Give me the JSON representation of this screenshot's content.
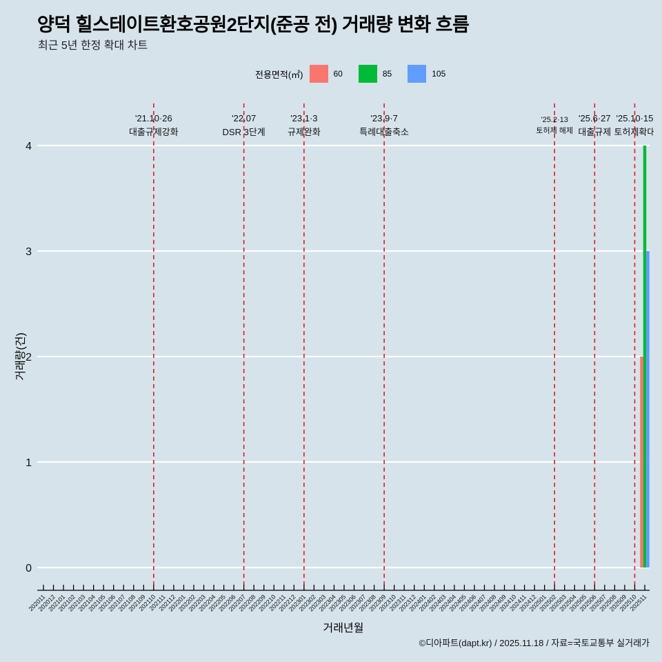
{
  "header": {
    "title": "양덕 힐스테이트환호공원2단지(준공 전) 거래량 변화 흐름",
    "subtitle": "최근 5년 한정 확대 차트"
  },
  "legend": {
    "title": "전용면적(㎡)",
    "items": [
      {
        "label": "60",
        "color": "#F8766D"
      },
      {
        "label": "85",
        "color": "#00BA38"
      },
      {
        "label": "105",
        "color": "#619CFF"
      }
    ]
  },
  "caption": "©디아파트(dapt.kr) / 2025.11.18 / 자료=국토교통부 실거래가",
  "chart_data": {
    "type": "bar",
    "title": "양덕 힐스테이트환호공원2단지(준공 전) 거래량 변화 흐름",
    "subtitle": "최근 5년 한정 확대 차트",
    "xlabel": "거래년월",
    "ylabel": "거래량(건)",
    "ylim": [
      0,
      4
    ],
    "yticks": [
      0,
      1,
      2,
      3,
      4
    ],
    "grid": true,
    "legend_position": "top",
    "legend_title": "전용면적(㎡)",
    "categories": [
      "202011",
      "202012",
      "202101",
      "202102",
      "202103",
      "202104",
      "202105",
      "202106",
      "202107",
      "202108",
      "202109",
      "202110",
      "202111",
      "202112",
      "202201",
      "202202",
      "202203",
      "202204",
      "202205",
      "202206",
      "202207",
      "202208",
      "202209",
      "202210",
      "202211",
      "202212",
      "202301",
      "202302",
      "202303",
      "202304",
      "202305",
      "202306",
      "202307",
      "202308",
      "202309",
      "202310",
      "202311",
      "202312",
      "202401",
      "202402",
      "202403",
      "202404",
      "202405",
      "202406",
      "202407",
      "202408",
      "202409",
      "202410",
      "202411",
      "202412",
      "202501",
      "202502",
      "202503",
      "202504",
      "202505",
      "202506",
      "202507",
      "202508",
      "202509",
      "202510",
      "202511"
    ],
    "series": [
      {
        "name": "60",
        "color": "#F8766D",
        "values": [
          0,
          0,
          0,
          0,
          0,
          0,
          0,
          0,
          0,
          0,
          0,
          0,
          0,
          0,
          0,
          0,
          0,
          0,
          0,
          0,
          0,
          0,
          0,
          0,
          0,
          0,
          0,
          0,
          0,
          0,
          0,
          0,
          0,
          0,
          0,
          0,
          0,
          0,
          0,
          0,
          0,
          0,
          0,
          0,
          0,
          0,
          0,
          0,
          0,
          0,
          0,
          0,
          0,
          0,
          0,
          0,
          0,
          0,
          0,
          0,
          2
        ]
      },
      {
        "name": "85",
        "color": "#00BA38",
        "values": [
          0,
          0,
          0,
          0,
          0,
          0,
          0,
          0,
          0,
          0,
          0,
          0,
          0,
          0,
          0,
          0,
          0,
          0,
          0,
          0,
          0,
          0,
          0,
          0,
          0,
          0,
          0,
          0,
          0,
          0,
          0,
          0,
          0,
          0,
          0,
          0,
          0,
          0,
          0,
          0,
          0,
          0,
          0,
          0,
          0,
          0,
          0,
          0,
          0,
          0,
          0,
          0,
          0,
          0,
          0,
          0,
          0,
          0,
          0,
          0,
          4
        ]
      },
      {
        "name": "105",
        "color": "#619CFF",
        "values": [
          0,
          0,
          0,
          0,
          0,
          0,
          0,
          0,
          0,
          0,
          0,
          0,
          0,
          0,
          0,
          0,
          0,
          0,
          0,
          0,
          0,
          0,
          0,
          0,
          0,
          0,
          0,
          0,
          0,
          0,
          0,
          0,
          0,
          0,
          0,
          0,
          0,
          0,
          0,
          0,
          0,
          0,
          0,
          0,
          0,
          0,
          0,
          0,
          0,
          0,
          0,
          0,
          0,
          0,
          0,
          0,
          0,
          0,
          0,
          0,
          3
        ]
      }
    ],
    "annotations": [
      {
        "x": "202110",
        "date": "'21.10·26",
        "label": "대출규제강화",
        "small": false
      },
      {
        "x": "202207",
        "date": "'22.07",
        "label": "DSR 3단계",
        "small": false
      },
      {
        "x": "202301",
        "date": "'23.1·3",
        "label": "규제완화",
        "small": false
      },
      {
        "x": "202309",
        "date": "'23.9·7",
        "label": "특례대출축소",
        "small": false
      },
      {
        "x": "202502",
        "date": "'25.2·13",
        "label": "토허제 해제",
        "small": true
      },
      {
        "x": "202506",
        "date": "'25.6·27",
        "label": "대출규제",
        "small": false
      },
      {
        "x": "202510",
        "date": "'25.10·15",
        "label": "토허제확대",
        "small": false
      }
    ],
    "annotation_line_color": "#E41A1C"
  }
}
